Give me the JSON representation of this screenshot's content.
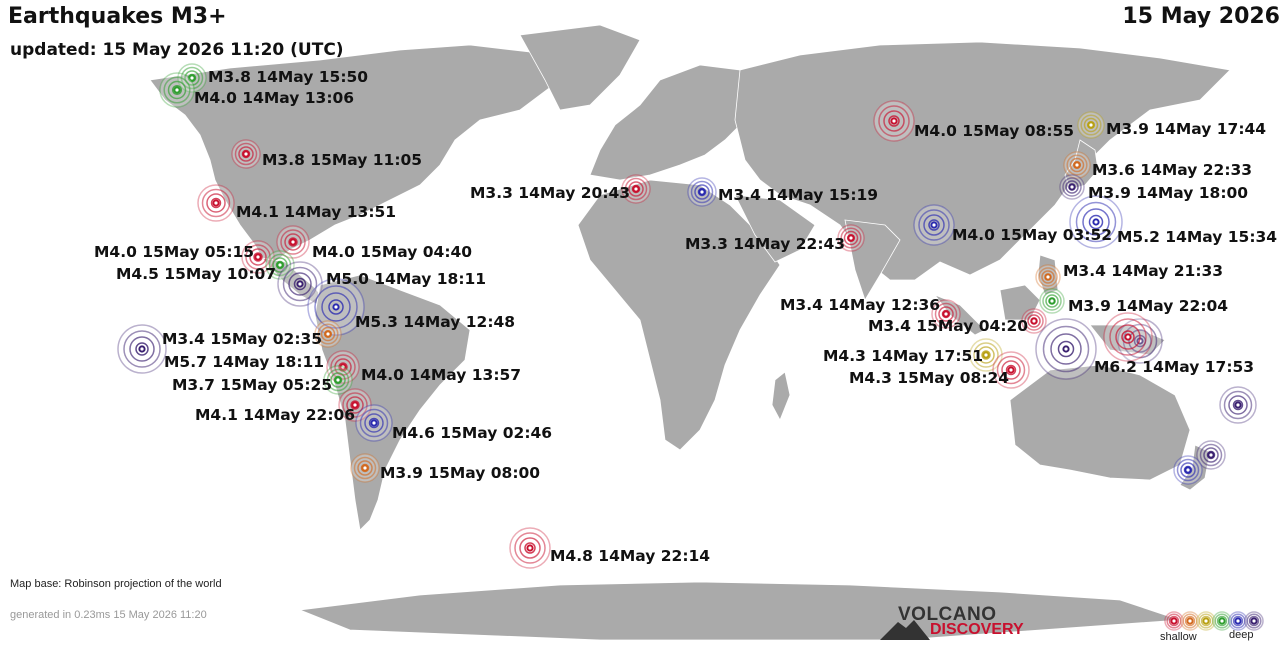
{
  "header": {
    "title": "Earthquakes M3+",
    "date": "15 May 2026",
    "updated": "updated: 15 May 2026 11:20 (UTC)"
  },
  "footer": {
    "map_base": "Map base: Robinson projection of the world",
    "generated": "generated in 0.23ms 15 May 2026 11:20"
  },
  "logo": {
    "line1": "VOLCANO",
    "line2": "DISCOVERY"
  },
  "legend": {
    "shallow_label": "shallow",
    "deep_label": "deep",
    "colors": [
      "#c8102e",
      "#d2691e",
      "#b8a012",
      "#2e9e2e",
      "#2a2ab0",
      "#3a2070"
    ]
  },
  "colors": {
    "ocean": "#ffffff",
    "land": "#aaaaaa",
    "coast": "#ffffff"
  },
  "quakes": [
    {
      "label": "M3.8 14May 15:50",
      "color": "#2e9e2e"
    },
    {
      "label": "M4.0 14May 13:06",
      "color": "#2e9e2e"
    },
    {
      "label": "M3.8 15May 11:05",
      "color": "#c8102e"
    },
    {
      "label": "M4.1 14May 13:51",
      "color": "#c8102e"
    },
    {
      "label": "M4.0 15May 05:15",
      "color": "#c8102e"
    },
    {
      "label": "M4.0 15May 04:40",
      "color": "#c8102e"
    },
    {
      "label": "M4.5 15May 10:07",
      "color": "#2e9e2e"
    },
    {
      "label": "M5.0 14May 18:11",
      "color": "#3a2070"
    },
    {
      "label": "M5.3 14May 12:48",
      "color": "#2a2ab0"
    },
    {
      "label": "M3.4 15May 02:35",
      "color": "#d2691e"
    },
    {
      "label": "M5.7 14May 18:11",
      "color": "#3a2070"
    },
    {
      "label": "M4.0 14May 13:57",
      "color": "#c8102e"
    },
    {
      "label": "M3.7 15May 05:25",
      "color": "#2e9e2e"
    },
    {
      "label": "M4.1 14May 22:06",
      "color": "#c8102e"
    },
    {
      "label": "M4.6 15May 02:46",
      "color": "#2a2ab0"
    },
    {
      "label": "M3.9 15May 08:00",
      "color": "#d2691e"
    },
    {
      "label": "M4.8 14May 22:14",
      "color": "#c8102e"
    },
    {
      "label": "M3.3 14May 20:43",
      "color": "#c8102e"
    },
    {
      "label": "M3.4 14May 15:19",
      "color": "#2a2ab0"
    },
    {
      "label": "M3.3 14May 22:43",
      "color": "#c8102e"
    },
    {
      "label": "M4.0 15May 08:55",
      "color": "#c8102e"
    },
    {
      "label": "M4.0 15May 03:52",
      "color": "#2a2ab0"
    },
    {
      "label": "M3.9 14May 17:44",
      "color": "#b8a012"
    },
    {
      "label": "M3.6 14May 22:33",
      "color": "#d2691e"
    },
    {
      "label": "M3.9 14May 18:00",
      "color": "#3a2070"
    },
    {
      "label": "M5.2 14May 15:34",
      "color": "#2a2ab0"
    },
    {
      "label": "M3.4 14May 21:33",
      "color": "#d2691e"
    },
    {
      "label": "M3.9 14May 22:04",
      "color": "#2e9e2e"
    },
    {
      "label": "M3.4 14May 12:36",
      "color": "#c8102e"
    },
    {
      "label": "M3.4 15May 04:20",
      "color": "#c8102e"
    },
    {
      "label": "M4.3 14May 17:51",
      "color": "#b8a012"
    },
    {
      "label": "M4.3 15May 08:24",
      "color": "#c8102e"
    },
    {
      "label": "M6.2 14May 17:53",
      "color": "#3a2070"
    },
    {
      "label": "",
      "color": "#3a2070"
    },
    {
      "label": "",
      "color": "#3a2070"
    },
    {
      "label": "",
      "color": "#3a2070"
    },
    {
      "label": "",
      "color": "#2a2ab0"
    },
    {
      "label": "",
      "color": "#c8102e"
    }
  ]
}
